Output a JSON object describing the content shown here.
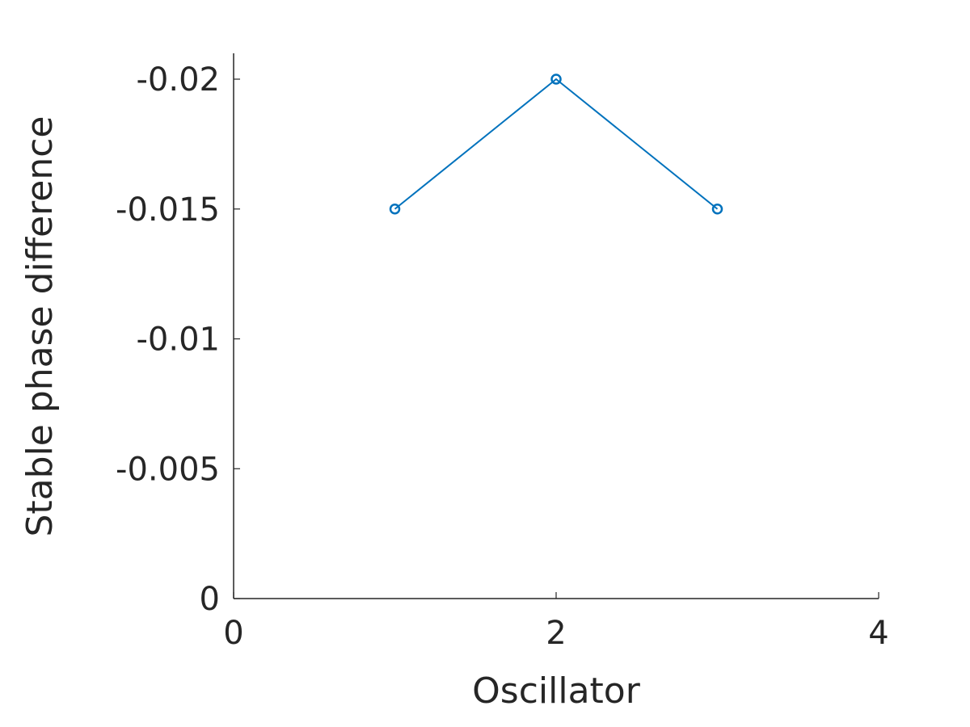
{
  "chart_data": {
    "type": "line",
    "title": "",
    "xlabel": "Oscillator",
    "ylabel": "Stable phase difference",
    "xlim": [
      0,
      4
    ],
    "ylim": [
      0,
      -0.02
    ],
    "y_axis_reversed": true,
    "x_ticks": [
      0,
      2,
      4
    ],
    "x_tick_labels": [
      "0",
      "2",
      "4"
    ],
    "y_ticks": [
      0,
      -0.005,
      -0.01,
      -0.015,
      -0.02
    ],
    "y_tick_labels": [
      "0",
      "-0.005",
      "-0.01",
      "-0.015",
      "-0.02"
    ],
    "grid": false,
    "legend": "none",
    "series": [
      {
        "x": [
          1,
          2,
          3
        ],
        "y": [
          -0.015,
          -0.02,
          -0.015
        ],
        "color": "#0072BD",
        "marker": "circle"
      }
    ]
  }
}
